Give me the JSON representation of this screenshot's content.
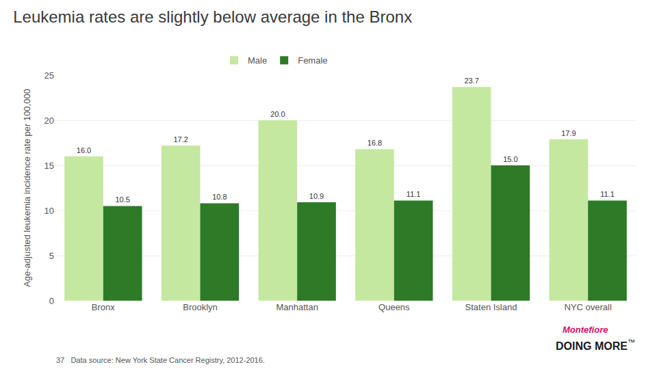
{
  "chart_data": {
    "type": "bar",
    "title": "Leukemia rates are slightly below average in the Bronx",
    "ylabel": "Age-adjusted leukemia incidence rate per 100,000",
    "categories": [
      "Bronx",
      "Brooklyn",
      "Manhattan",
      "Queens",
      "Staten Island",
      "NYC overall"
    ],
    "series": [
      {
        "name": "Male",
        "color": "#c5e8a0",
        "values": [
          16.0,
          17.2,
          20.0,
          16.8,
          23.7,
          17.9
        ],
        "value_labels": [
          "16.0",
          "17.2",
          "20.0",
          "16.8",
          "23.7",
          "17.9"
        ]
      },
      {
        "name": "Female",
        "color": "#2d7a27",
        "values": [
          10.5,
          10.8,
          10.9,
          11.1,
          15.0,
          11.1
        ],
        "value_labels": [
          "10.5",
          "10.8",
          "10.9",
          "11.1",
          "15.0",
          "11.1"
        ]
      }
    ],
    "ylim": [
      0,
      25
    ],
    "yticks": [
      0,
      5,
      10,
      15,
      20,
      25
    ],
    "grid": true,
    "legend": "top",
    "data_labels": true,
    "annotations": [
      {
        "text": "37   Data source: New York State Cancer Registry, 2012-2016.",
        "color": "#555555"
      },
      {
        "text": "Montefiore",
        "color": "#cc1166"
      },
      {
        "text": "DOING MORE",
        "color": "#1a1a1a"
      },
      {
        "text": "™",
        "color": "#1a1a1a"
      }
    ]
  }
}
